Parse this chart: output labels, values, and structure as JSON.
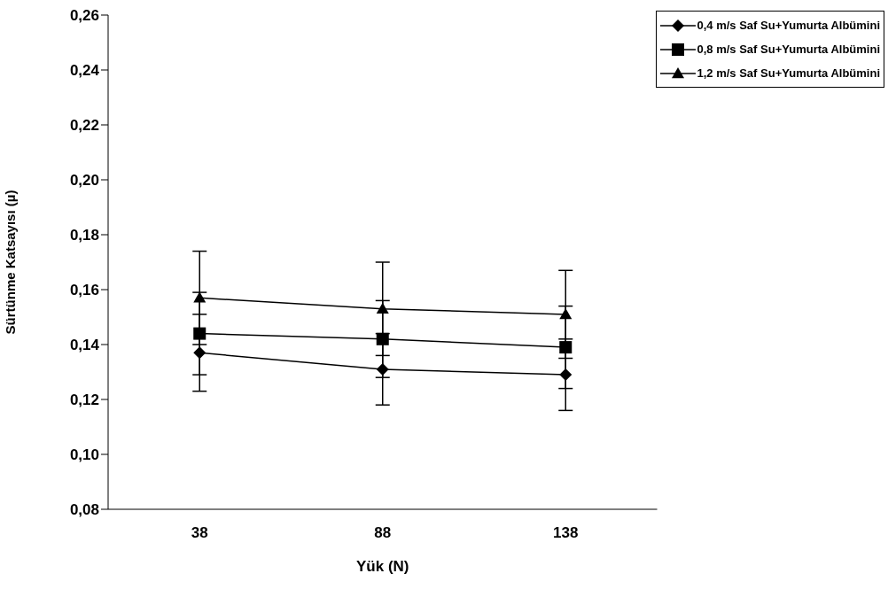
{
  "chart_data": {
    "type": "line",
    "xlabel": "Yük (N)",
    "ylabel": "Sürtünme Katsayısı (µ)",
    "categories": [
      "38",
      "88",
      "138"
    ],
    "series": [
      {
        "name": "0,4 m/s Saf  Su+Yumurta Albümini",
        "color": "#000000",
        "marker": "diamond",
        "values": [
          0.137,
          0.131,
          0.129
        ],
        "errors": [
          0.014,
          0.013,
          0.013
        ]
      },
      {
        "name": "0,8 m/s Saf  Su+Yumurta Albümini",
        "color": "#000000",
        "marker": "square",
        "values": [
          0.144,
          0.142,
          0.139
        ],
        "errors": [
          0.015,
          0.014,
          0.015
        ]
      },
      {
        "name": "1,2 m/s Saf  Su+Yumurta Albümini",
        "color": "#000000",
        "marker": "triangle",
        "values": [
          0.157,
          0.153,
          0.151
        ],
        "errors": [
          0.017,
          0.017,
          0.016
        ]
      }
    ],
    "ylim": [
      0.08,
      0.26
    ],
    "yticks": [
      {
        "value": 0.08,
        "label": "0,08"
      },
      {
        "value": 0.1,
        "label": "0,10"
      },
      {
        "value": 0.12,
        "label": "0,12"
      },
      {
        "value": 0.14,
        "label": "0,14"
      },
      {
        "value": 0.16,
        "label": "0,16"
      },
      {
        "value": 0.18,
        "label": "0,18"
      },
      {
        "value": 0.2,
        "label": "0,20"
      },
      {
        "value": 0.22,
        "label": "0,22"
      },
      {
        "value": 0.24,
        "label": "0,24"
      },
      {
        "value": 0.26,
        "label": "0,26"
      }
    ],
    "grid": false,
    "legend": "top right"
  }
}
